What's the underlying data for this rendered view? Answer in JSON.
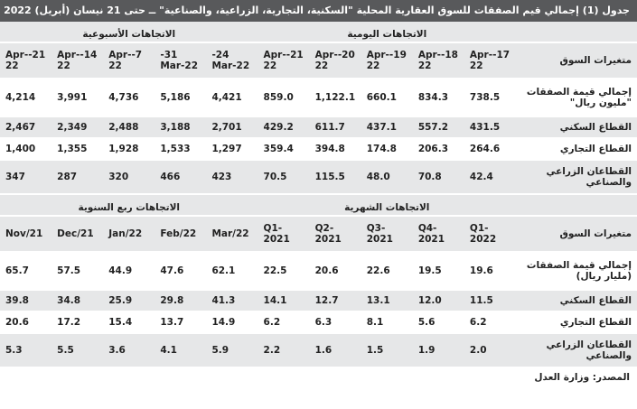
{
  "title": "جدول (1) إجمالي قيم الصفقات للسوق العقارية المحلية \"السكنية، التجارية، الزراعية، والصناعية\" ــ حتى 21 نيسان (أبريل) 2022",
  "sections": [
    {
      "groups": [
        "الاتجاهات اليومية",
        "الاتجاهات الأسبوعية"
      ],
      "header_label": "متغيرات السوق",
      "columns": [
        "17-Apr-22",
        "18-Apr-22",
        "19-Apr-22",
        "20-Apr-22",
        "21-Apr-22",
        "24-Mar-22",
        "31-Mar-22",
        "7-Apr-22",
        "14-Apr-22",
        "21-Apr-22"
      ],
      "rows": [
        {
          "label": "إجمالي قيمة الصفقات \"مليون ريال\"",
          "values": [
            "738.5",
            "834.3",
            "660.1",
            "1,122.1",
            "859.0",
            "4,421",
            "5,186",
            "4,736",
            "3,991",
            "4,214"
          ]
        },
        {
          "label": "القطاع السكني",
          "values": [
            "431.5",
            "557.2",
            "437.1",
            "611.7",
            "429.2",
            "2,701",
            "3,188",
            "2,488",
            "2,349",
            "2,467"
          ]
        },
        {
          "label": "القطاع التجاري",
          "values": [
            "264.6",
            "206.3",
            "174.8",
            "394.8",
            "359.4",
            "1,297",
            "1,533",
            "1,928",
            "1,355",
            "1,400"
          ]
        },
        {
          "label": "القطاعان الزراعي والصناعي",
          "values": [
            "42.4",
            "70.8",
            "48.0",
            "115.5",
            "70.5",
            "423",
            "466",
            "320",
            "287",
            "347"
          ]
        }
      ]
    },
    {
      "groups": [
        "الاتجاهات الشهرية",
        "الاتجاهات ربع السنوية"
      ],
      "header_label": "متغيرات السوق",
      "columns": [
        "Q1-2022",
        "Q4-2021",
        "Q3-2021",
        "Q2-2021",
        "Q1-2021",
        "Mar/22",
        "Feb/22",
        "Jan/22",
        "Dec/21",
        "Nov/21"
      ],
      "rows": [
        {
          "label": "إجمالي قيمة الصفقات (مليار ريال)",
          "values": [
            "19.6",
            "19.5",
            "22.6",
            "20.6",
            "22.5",
            "62.1",
            "47.6",
            "44.9",
            "57.5",
            "65.7"
          ]
        },
        {
          "label": "القطاع السكني",
          "values": [
            "11.5",
            "12.0",
            "13.1",
            "12.7",
            "14.1",
            "41.3",
            "29.8",
            "25.9",
            "34.8",
            "39.8"
          ]
        },
        {
          "label": "القطاع التجاري",
          "values": [
            "6.2",
            "5.6",
            "8.1",
            "6.3",
            "6.2",
            "14.9",
            "13.7",
            "15.4",
            "17.2",
            "20.6"
          ]
        },
        {
          "label": "القطاعان الزراعي والصناعي",
          "values": [
            "2.0",
            "1.9",
            "1.5",
            "1.6",
            "2.2",
            "5.9",
            "4.1",
            "3.6",
            "5.5",
            "5.3"
          ]
        }
      ]
    }
  ],
  "source": "المصدر: وزارة العدل"
}
